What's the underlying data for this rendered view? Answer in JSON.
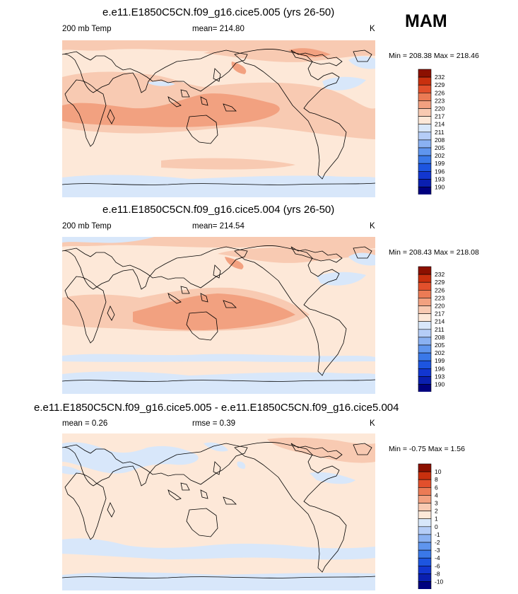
{
  "season": "MAM",
  "panels": [
    {
      "title": "e.e11.E1850C5CN.f09_g16.cice5.005 (yrs 26-50)",
      "left_label": "200 mb Temp",
      "center_label": "mean= 214.80",
      "units": "K",
      "minmax": "Min = 208.38 Max = 218.46"
    },
    {
      "title": "e.e11.E1850C5CN.f09_g16.cice5.004 (yrs 26-50)",
      "left_label": "200 mb Temp",
      "center_label": "mean= 214.54",
      "units": "K",
      "minmax": "Min = 208.43 Max = 218.08"
    },
    {
      "title": "e.e11.E1850C5CN.f09_g16.cice5.005 - e.e11.E1850C5CN.f09_g16.cice5.004",
      "left_label": "mean =   0.26",
      "center_label": "rmse =   0.39",
      "units": "K",
      "minmax": "Min =  -0.75 Max =   1.56"
    }
  ],
  "chart_data": [
    {
      "type": "heatmap",
      "title": "e.e11.E1850C5CN.f09_g16.cice5.005 (yrs 26-50)",
      "variable": "200 mb Temp",
      "units": "K",
      "mean": 214.8,
      "min": 208.38,
      "max": 218.46,
      "lon_range": [
        0,
        360
      ],
      "lat_range": [
        -90,
        90
      ],
      "levels": [
        190,
        193,
        196,
        199,
        202,
        205,
        208,
        211,
        214,
        217,
        220,
        223,
        226,
        229,
        232
      ],
      "colors": [
        "#00007f",
        "#0a1fb0",
        "#1236d0",
        "#1d55e0",
        "#3a78e8",
        "#5f95ee",
        "#8ab1f2",
        "#b5cdf7",
        "#d8e7fa",
        "#fde8d8",
        "#f8cab2",
        "#f2a180",
        "#eb7b55",
        "#e2502c",
        "#c9300e",
        "#8c1000"
      ]
    },
    {
      "type": "heatmap",
      "title": "e.e11.E1850C5CN.f09_g16.cice5.004 (yrs 26-50)",
      "variable": "200 mb Temp",
      "units": "K",
      "mean": 214.54,
      "min": 208.43,
      "max": 218.08,
      "lon_range": [
        0,
        360
      ],
      "lat_range": [
        -90,
        90
      ],
      "levels": [
        190,
        193,
        196,
        199,
        202,
        205,
        208,
        211,
        214,
        217,
        220,
        223,
        226,
        229,
        232
      ],
      "colors": [
        "#00007f",
        "#0a1fb0",
        "#1236d0",
        "#1d55e0",
        "#3a78e8",
        "#5f95ee",
        "#8ab1f2",
        "#b5cdf7",
        "#d8e7fa",
        "#fde8d8",
        "#f8cab2",
        "#f2a180",
        "#eb7b55",
        "#e2502c",
        "#c9300e",
        "#8c1000"
      ]
    },
    {
      "type": "heatmap",
      "title": "e.e11.E1850C5CN.f09_g16.cice5.005 - e.e11.E1850C5CN.f09_g16.cice5.004",
      "units": "K",
      "mean": 0.26,
      "rmse": 0.39,
      "min": -0.75,
      "max": 1.56,
      "lon_range": [
        0,
        360
      ],
      "lat_range": [
        -90,
        90
      ],
      "levels": [
        -10,
        -8,
        -6,
        -4,
        -3,
        -2,
        -1,
        0,
        1,
        2,
        3,
        4,
        6,
        8,
        10
      ],
      "colors": [
        "#00007f",
        "#0a1fb0",
        "#1236d0",
        "#1d55e0",
        "#3a78e8",
        "#5f95ee",
        "#8ab1f2",
        "#b5cdf7",
        "#d8e7fa",
        "#fde8d8",
        "#f8cab2",
        "#f2a180",
        "#eb7b55",
        "#e2502c",
        "#c9300e",
        "#8c1000"
      ]
    }
  ]
}
